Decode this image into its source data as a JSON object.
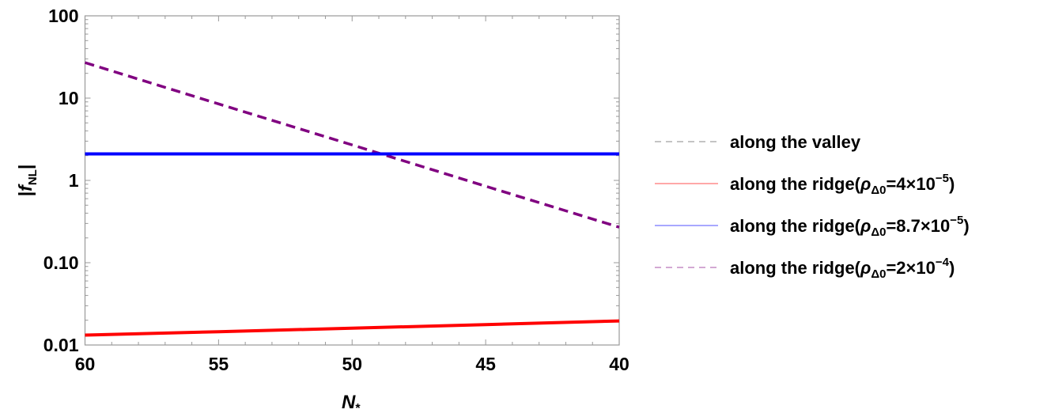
{
  "chart_data": {
    "type": "line",
    "xlabel": {
      "main": "N",
      "sub": "*"
    },
    "ylabel": {
      "pre": "|",
      "main": "f",
      "sub": "NL",
      "post": "|"
    },
    "xlim": [
      60,
      40
    ],
    "x_reversed": true,
    "ylim": [
      0.01,
      100
    ],
    "y_scale": "log",
    "grid": false,
    "legend_position": "right",
    "x_ticks": [
      "60",
      "55",
      "50",
      "45",
      "40"
    ],
    "y_ticks": [
      "0.01",
      "0.10",
      "1",
      "10",
      "100"
    ],
    "x": [
      60,
      55,
      50,
      45,
      40
    ],
    "series": [
      {
        "key": "valley",
        "color": "#555555",
        "dash": true,
        "label": {
          "prefix": "along the valley",
          "symbol": "",
          "subscript": "",
          "eq": "",
          "exponent": "",
          "suffix": ""
        },
        "values": [
          0.0132,
          0.0145,
          0.016,
          0.0177,
          0.0196
        ]
      },
      {
        "key": "ridge1",
        "color": "#ff0000",
        "dash": false,
        "label": {
          "prefix": "along the ridge(",
          "symbol": "ρ",
          "subscript": "Δ0",
          "eq": "=4×10",
          "exponent": "−5",
          "suffix": ")"
        },
        "values": [
          0.0132,
          0.0145,
          0.016,
          0.0177,
          0.0196
        ]
      },
      {
        "key": "ridge2",
        "color": "#0000ff",
        "dash": false,
        "label": {
          "prefix": "along the ridge(",
          "symbol": "ρ",
          "subscript": "Δ0",
          "eq": "=8.7×10",
          "exponent": "−5",
          "suffix": ")"
        },
        "values": [
          2.1,
          2.1,
          2.1,
          2.1,
          2.1
        ]
      },
      {
        "key": "ridge3",
        "color": "#800080",
        "dash": true,
        "label": {
          "prefix": "along the ridge(",
          "symbol": "ρ",
          "subscript": "Δ0",
          "eq": "=2×10",
          "exponent": "−4",
          "suffix": ")"
        },
        "values": [
          27,
          8.5,
          2.7,
          0.85,
          0.27
        ]
      }
    ]
  }
}
